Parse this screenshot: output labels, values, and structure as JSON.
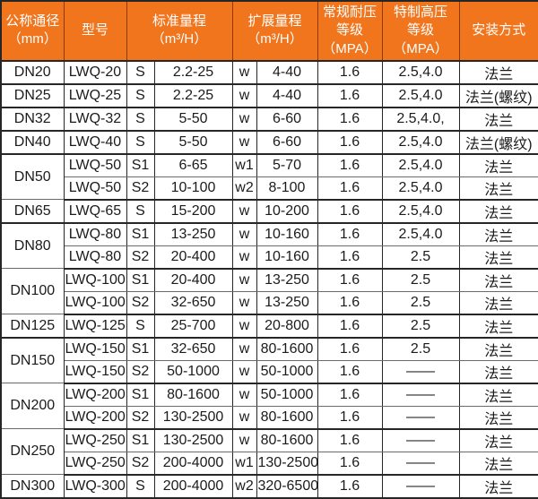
{
  "colors": {
    "header_bg": "#F0751D",
    "header_text": "#FFFFFF",
    "header_cell_border": "#8A3B05",
    "grid_dark": "#262626",
    "grid_inner": "#6A6A6A",
    "body_text": "#1B1B1B",
    "page_bg": "#FFFFFF"
  },
  "header": {
    "dn": [
      "公称通径",
      "（mm）"
    ],
    "model": [
      "型号"
    ],
    "std": [
      "标准量程",
      "（m³/H）"
    ],
    "ext": [
      "扩展量程",
      "（m³/H）"
    ],
    "normal": [
      "常规耐压",
      "等级（MPA）"
    ],
    "high": [
      "特制高压",
      "等级（MPA）"
    ],
    "install": [
      "安装方式"
    ]
  },
  "table": {
    "groups": [
      {
        "dn": "DN20",
        "rows": [
          {
            "model": "LWQ-20",
            "std_code": "S",
            "std_range": "2.2-25",
            "ext_code": "w",
            "ext_range": "4-40",
            "normal_mpa": "1.6",
            "high_mpa": "2.5,4.0",
            "install": "法兰"
          }
        ]
      },
      {
        "dn": "DN25",
        "rows": [
          {
            "model": "LWQ-25",
            "std_code": "S",
            "std_range": "2.2-25",
            "ext_code": "w",
            "ext_range": "4-40",
            "normal_mpa": "1.6",
            "high_mpa": "2.5,4.0",
            "install": "法兰(螺纹)"
          }
        ]
      },
      {
        "dn": "DN32",
        "rows": [
          {
            "model": "LWQ-32",
            "std_code": "S",
            "std_range": "5-50",
            "ext_code": "w",
            "ext_range": "6-60",
            "normal_mpa": "1.6",
            "high_mpa": "2.5,4.0,",
            "install": "法兰"
          }
        ]
      },
      {
        "dn": "DN40",
        "rows": [
          {
            "model": "LWQ-40",
            "std_code": "S",
            "std_range": "5-50",
            "ext_code": "w",
            "ext_range": "6-60",
            "normal_mpa": "1.6",
            "high_mpa": "2.5,4.0",
            "install": "法兰(螺纹)"
          }
        ]
      },
      {
        "dn": "DN50",
        "rows": [
          {
            "model": "LWQ-50",
            "std_code": "S1",
            "std_range": "6-65",
            "ext_code": "w1",
            "ext_range": "5-70",
            "normal_mpa": "1.6",
            "high_mpa": "2.5,4.0",
            "install": "法兰"
          },
          {
            "model": "LWQ-50",
            "std_code": "S2",
            "std_range": "10-100",
            "ext_code": "w2",
            "ext_range": "8-100",
            "normal_mpa": "1.6",
            "high_mpa": "2.5,4.0",
            "install": "法兰"
          }
        ]
      },
      {
        "dn": "DN65",
        "rows": [
          {
            "model": "LWQ-65",
            "std_code": "S",
            "std_range": "15-200",
            "ext_code": "w",
            "ext_range": "10-200",
            "normal_mpa": "1.6",
            "high_mpa": "2.5,4.0",
            "install": "法兰"
          }
        ]
      },
      {
        "dn": "DN80",
        "rows": [
          {
            "model": "LWQ-80",
            "std_code": "S1",
            "std_range": "13-250",
            "ext_code": "w",
            "ext_range": "10-160",
            "normal_mpa": "1.6",
            "high_mpa": "2.5,4.0",
            "install": "法兰"
          },
          {
            "model": "LWQ-80",
            "std_code": "S2",
            "std_range": "20-400",
            "ext_code": "w",
            "ext_range": "10-160",
            "normal_mpa": "1.6",
            "high_mpa": "2.5",
            "install": "法兰"
          }
        ]
      },
      {
        "dn": "DN100",
        "rows": [
          {
            "model": "LWQ-100",
            "std_code": "S1",
            "std_range": "20-400",
            "ext_code": "w",
            "ext_range": "13-250",
            "normal_mpa": "1.6",
            "high_mpa": "2.5",
            "install": "法兰"
          },
          {
            "model": "LWQ-100",
            "std_code": "S2",
            "std_range": "32-650",
            "ext_code": "w",
            "ext_range": "13-250",
            "normal_mpa": "1.6",
            "high_mpa": "2.5",
            "install": "法兰"
          }
        ]
      },
      {
        "dn": "DN125",
        "rows": [
          {
            "model": "LWQ-125",
            "std_code": "S",
            "std_range": "25-700",
            "ext_code": "w",
            "ext_range": "20-800",
            "normal_mpa": "1.6",
            "high_mpa": "2.5",
            "install": "法兰"
          }
        ]
      },
      {
        "dn": "DN150",
        "rows": [
          {
            "model": "LWQ-150",
            "std_code": "S1",
            "std_range": "32-650",
            "ext_code": "w",
            "ext_range": "80-1600",
            "normal_mpa": "1.6",
            "high_mpa": "2.5",
            "install": "法兰"
          },
          {
            "model": "LWQ-150",
            "std_code": "S2",
            "std_range": "50-1000",
            "ext_code": "w",
            "ext_range": "50-1000",
            "normal_mpa": "1.6",
            "high_mpa": "——",
            "install": "法兰"
          }
        ]
      },
      {
        "dn": "DN200",
        "rows": [
          {
            "model": "LWQ-200",
            "std_code": "S1",
            "std_range": "80-1600",
            "ext_code": "w",
            "ext_range": "50-1000",
            "normal_mpa": "1.6",
            "high_mpa": "——",
            "install": "法兰"
          },
          {
            "model": "LWQ-200",
            "std_code": "S2",
            "std_range": "130-2500",
            "ext_code": "w",
            "ext_range": "80-1600",
            "normal_mpa": "1.6",
            "high_mpa": "——",
            "install": "法兰"
          }
        ]
      },
      {
        "dn": "DN250",
        "rows": [
          {
            "model": "LWQ-250",
            "std_code": "S1",
            "std_range": "130-2500",
            "ext_code": "w",
            "ext_range": "80-1600",
            "normal_mpa": "1.6",
            "high_mpa": "——",
            "install": "法兰"
          },
          {
            "model": "LWQ-250",
            "std_code": "S2",
            "std_range": "200-4000",
            "ext_code": "w1",
            "ext_range": "130-2500",
            "normal_mpa": "1.6",
            "high_mpa": "——",
            "install": "法兰"
          }
        ]
      },
      {
        "dn": "DN300",
        "rows": [
          {
            "model": "LWQ-300",
            "std_code": "S",
            "std_range": "200-4000",
            "ext_code": "w2",
            "ext_range": "320-6500",
            "normal_mpa": "1.6",
            "high_mpa": "——",
            "install": "法兰"
          }
        ]
      }
    ]
  }
}
